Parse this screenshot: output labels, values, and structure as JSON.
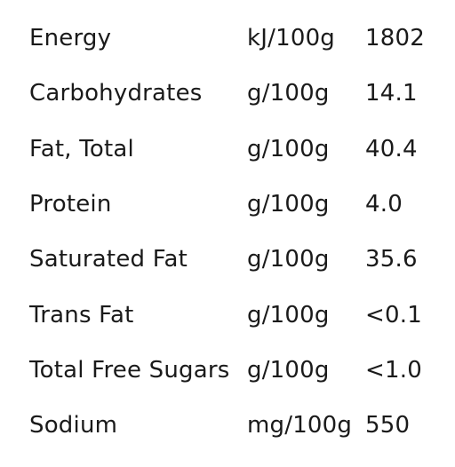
{
  "nutrition": {
    "rows": [
      {
        "name": "Energy",
        "unit": "kJ/100g",
        "value": "1802"
      },
      {
        "name": "Carbohydrates",
        "unit": "g/100g",
        "value": "14.1"
      },
      {
        "name": "Fat, Total",
        "unit": "g/100g",
        "value": "40.4"
      },
      {
        "name": "Protein",
        "unit": "g/100g",
        "value": "4.0"
      },
      {
        "name": "Saturated Fat",
        "unit": "g/100g",
        "value": "35.6"
      },
      {
        "name": "Trans Fat",
        "unit": "g/100g",
        "value": "<0.1"
      },
      {
        "name": "Total Free Sugars",
        "unit": "g/100g",
        "value": "<1.0"
      },
      {
        "name": "Sodium",
        "unit": "mg/100g",
        "value": "550"
      }
    ]
  }
}
